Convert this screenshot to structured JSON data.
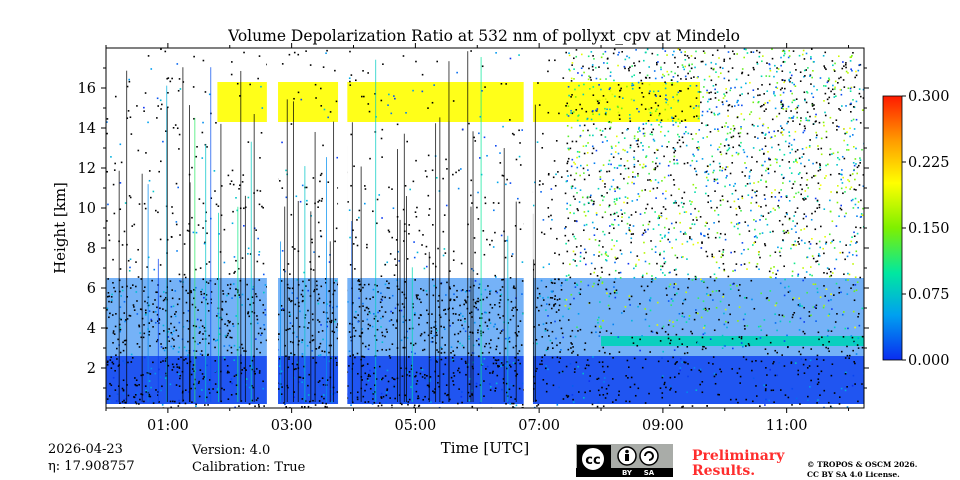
{
  "chart_data": {
    "type": "heatmap",
    "title": "Volume Depolarization Ratio at 532 nm of pollyxt_cpv at Mindelo",
    "xlabel": "Time [UTC]",
    "ylabel": "Height [km]",
    "xlim_hours": [
      0.0,
      12.25
    ],
    "ylim_km": [
      0.0,
      18.0
    ],
    "x_ticks": [
      {
        "value": 1,
        "label": "01:00"
      },
      {
        "value": 3,
        "label": "03:00"
      },
      {
        "value": 5,
        "label": "05:00"
      },
      {
        "value": 7,
        "label": "07:00"
      },
      {
        "value": 9,
        "label": "09:00"
      },
      {
        "value": 11,
        "label": "11:00"
      }
    ],
    "y_ticks": [
      {
        "value": 2,
        "label": "2"
      },
      {
        "value": 4,
        "label": "4"
      },
      {
        "value": 6,
        "label": "6"
      },
      {
        "value": 8,
        "label": "8"
      },
      {
        "value": 10,
        "label": "10"
      },
      {
        "value": 12,
        "label": "12"
      },
      {
        "value": 14,
        "label": "14"
      },
      {
        "value": 16,
        "label": "16"
      }
    ],
    "colorbar": {
      "min": 0.0,
      "max": 0.3,
      "ticks": [
        {
          "value": 0.0,
          "label": "0.000"
        },
        {
          "value": 0.075,
          "label": "0.075"
        },
        {
          "value": 0.15,
          "label": "0.150"
        },
        {
          "value": 0.225,
          "label": "0.225"
        },
        {
          "value": 0.3,
          "label": "0.300"
        }
      ],
      "colors": [
        "#0a2cf0",
        "#00a0f0",
        "#00e8a0",
        "#7ef000",
        "#ffff00",
        "#ff9c00",
        "#ff1a00"
      ]
    },
    "no_data_gaps_hours": [
      [
        2.6,
        2.78
      ],
      [
        3.75,
        3.9
      ],
      [
        6.75,
        6.9
      ]
    ],
    "layers": [
      {
        "name": "boundary layer aerosol",
        "base_km": 0.2,
        "top_km": 2.6,
        "depol_ratio": 0.01
      },
      {
        "name": "dust/aerosol layer",
        "base_km": 2.6,
        "top_km": 6.5,
        "depol_ratio": 0.03
      },
      {
        "name": "layer after 08:00",
        "base_km": 3.1,
        "top_km": 3.6,
        "start_h": 8.0,
        "end_h": 12.25,
        "depol_ratio": 0.085
      },
      {
        "name": "cirrus",
        "base_km": 14.3,
        "top_km": 16.3,
        "start_h": 1.8,
        "end_h": 9.6,
        "depol_ratio": 0.2
      }
    ]
  },
  "meta": {
    "date": "2026-04-23",
    "eta": "η: 17.908757",
    "version": "Version: 4.0",
    "calibration": "Calibration: True"
  },
  "footer": {
    "preliminary_line1": "Preliminary",
    "preliminary_line2": "Results.",
    "copyright_line1": "© TROPOS & OSCM 2026.",
    "copyright_line2": "CC BY SA 4.0 License.",
    "license_badge": {
      "label_by": "BY",
      "label_sa": "SA",
      "icon": "cc-by-sa-icon"
    }
  }
}
